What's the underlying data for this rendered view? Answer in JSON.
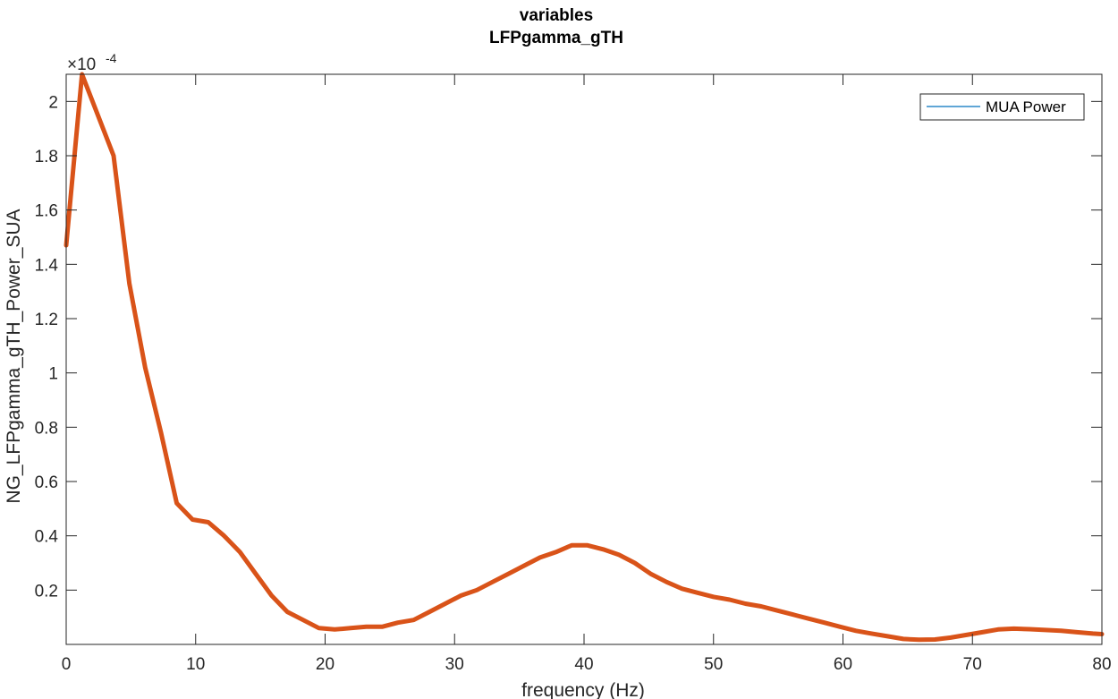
{
  "chart_data": {
    "type": "line",
    "title": "variables",
    "subtitle": "LFPgamma_gTH",
    "xlabel": "frequency (Hz)",
    "ylabel": "NG_LFPgamma_gTH_Power_SUA",
    "y_exponent_base": "×10",
    "y_exponent_power": "-4",
    "xlim": [
      0,
      80
    ],
    "ylim": [
      0,
      2.1
    ],
    "x_ticks": [
      0,
      10,
      20,
      30,
      40,
      50,
      60,
      70,
      80
    ],
    "x_tick_labels": [
      "0",
      "10",
      "20",
      "30",
      "40",
      "50",
      "60",
      "70",
      "80"
    ],
    "y_ticks": [
      0.2,
      0.4,
      0.6,
      0.8,
      1.0,
      1.2,
      1.4,
      1.6,
      1.8,
      2.0
    ],
    "y_tick_labels": [
      "0.2",
      "0.4",
      "0.6",
      "0.8",
      "1",
      "1.2",
      "1.4",
      "1.6",
      "1.8",
      "2"
    ],
    "grid": false,
    "legend": {
      "position": "top-right",
      "entries": [
        "MUA Power"
      ]
    },
    "series": [
      {
        "name": "MUA Power",
        "color": "#0072bd",
        "line_width": "thin",
        "x": [
          0,
          1.22,
          3.66,
          4.88,
          6.1,
          7.32,
          8.54,
          9.76,
          10.98,
          12.2,
          13.42,
          14.64,
          15.86,
          17.08,
          18.3,
          19.52,
          20.74,
          21.96,
          23.18,
          24.4,
          25.62,
          26.84,
          28.06,
          29.28,
          30.5,
          31.72,
          32.94,
          34.16,
          35.38,
          36.6,
          37.82,
          39.04,
          40.26,
          41.48,
          42.7,
          43.92,
          45.14,
          46.36,
          47.58,
          48.8,
          50.02,
          51.24,
          52.46,
          53.68,
          54.9,
          56.12,
          57.34,
          58.56,
          59.78,
          61.0,
          62.22,
          63.44,
          64.66,
          65.88,
          67.1,
          68.32,
          69.54,
          70.76,
          71.98,
          73.2,
          74.42,
          75.64,
          76.86,
          78.08,
          79.3,
          80.0
        ],
        "y": [
          1.47,
          2.1,
          1.8,
          1.33,
          1.02,
          0.78,
          0.52,
          0.46,
          0.45,
          0.4,
          0.34,
          0.26,
          0.18,
          0.12,
          0.09,
          0.06,
          0.055,
          0.06,
          0.065,
          0.065,
          0.08,
          0.09,
          0.12,
          0.15,
          0.18,
          0.2,
          0.23,
          0.26,
          0.29,
          0.32,
          0.34,
          0.365,
          0.365,
          0.35,
          0.33,
          0.3,
          0.26,
          0.23,
          0.205,
          0.19,
          0.175,
          0.165,
          0.15,
          0.14,
          0.125,
          0.11,
          0.095,
          0.08,
          0.065,
          0.05,
          0.04,
          0.03,
          0.02,
          0.017,
          0.018,
          0.025,
          0.035,
          0.045,
          0.055,
          0.058,
          0.056,
          0.053,
          0.05,
          0.045,
          0.04,
          0.038
        ]
      },
      {
        "color": "#d95319",
        "line_width": "thick",
        "x": [
          0,
          1.22,
          3.66,
          4.88,
          6.1,
          7.32,
          8.54,
          9.76,
          10.98,
          12.2,
          13.42,
          14.64,
          15.86,
          17.08,
          18.3,
          19.52,
          20.74,
          21.96,
          23.18,
          24.4,
          25.62,
          26.84,
          28.06,
          29.28,
          30.5,
          31.72,
          32.94,
          34.16,
          35.38,
          36.6,
          37.82,
          39.04,
          40.26,
          41.48,
          42.7,
          43.92,
          45.14,
          46.36,
          47.58,
          48.8,
          50.02,
          51.24,
          52.46,
          53.68,
          54.9,
          56.12,
          57.34,
          58.56,
          59.78,
          61.0,
          62.22,
          63.44,
          64.66,
          65.88,
          67.1,
          68.32,
          69.54,
          70.76,
          71.98,
          73.2,
          74.42,
          75.64,
          76.86,
          78.08,
          79.3,
          80.0
        ],
        "y": [
          1.47,
          2.1,
          1.8,
          1.33,
          1.02,
          0.78,
          0.52,
          0.46,
          0.45,
          0.4,
          0.34,
          0.26,
          0.18,
          0.12,
          0.09,
          0.06,
          0.055,
          0.06,
          0.065,
          0.065,
          0.08,
          0.09,
          0.12,
          0.15,
          0.18,
          0.2,
          0.23,
          0.26,
          0.29,
          0.32,
          0.34,
          0.365,
          0.365,
          0.35,
          0.33,
          0.3,
          0.26,
          0.23,
          0.205,
          0.19,
          0.175,
          0.165,
          0.15,
          0.14,
          0.125,
          0.11,
          0.095,
          0.08,
          0.065,
          0.05,
          0.04,
          0.03,
          0.02,
          0.017,
          0.018,
          0.025,
          0.035,
          0.045,
          0.055,
          0.058,
          0.056,
          0.053,
          0.05,
          0.045,
          0.04,
          0.038
        ]
      }
    ]
  }
}
